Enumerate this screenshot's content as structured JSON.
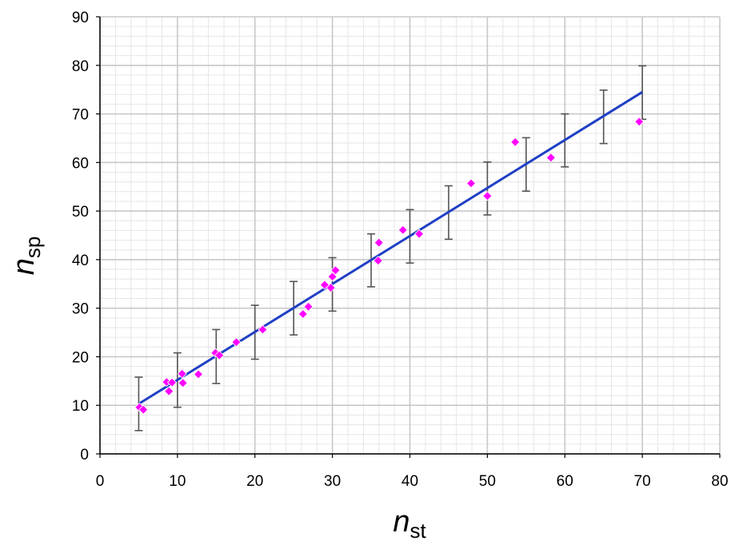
{
  "chart_data": {
    "type": "scatter",
    "title": "",
    "xlabel": {
      "main": "n",
      "sub": "st"
    },
    "ylabel": {
      "main": "n",
      "sub": "sp"
    },
    "xlim": [
      0,
      80
    ],
    "ylim": [
      0,
      90
    ],
    "x_major_step": 10,
    "y_major_step": 10,
    "x_minor_step": 2,
    "y_minor_step": 2,
    "x_ticks": [
      "0",
      "10",
      "20",
      "30",
      "40",
      "50",
      "60",
      "70",
      "80"
    ],
    "y_ticks": [
      "0",
      "10",
      "20",
      "30",
      "40",
      "50",
      "60",
      "70",
      "80",
      "90"
    ],
    "grid": true,
    "legend": "none",
    "points": [
      [
        5.1,
        9.6
      ],
      [
        5.6,
        9.1
      ],
      [
        8.6,
        14.8
      ],
      [
        8.9,
        12.9
      ],
      [
        9.3,
        14.7
      ],
      [
        10.6,
        16.5
      ],
      [
        10.7,
        14.6
      ],
      [
        12.7,
        16.4
      ],
      [
        14.9,
        20.8
      ],
      [
        15.4,
        20.3
      ],
      [
        17.6,
        23.0
      ],
      [
        21.0,
        25.6
      ],
      [
        26.2,
        28.8
      ],
      [
        26.9,
        30.3
      ],
      [
        29.0,
        34.8
      ],
      [
        29.8,
        34.2
      ],
      [
        30.0,
        36.5
      ],
      [
        30.4,
        37.8
      ],
      [
        36.0,
        43.5
      ],
      [
        35.9,
        39.8
      ],
      [
        39.1,
        46.1
      ],
      [
        41.2,
        45.3
      ],
      [
        47.9,
        55.7
      ],
      [
        50.0,
        53.1
      ],
      [
        53.6,
        64.2
      ],
      [
        58.2,
        61.0
      ],
      [
        69.6,
        68.4
      ]
    ],
    "fit_line": {
      "x": [
        5,
        70
      ],
      "y": [
        10.3,
        74.5
      ]
    },
    "error_bars": [
      {
        "x": 5,
        "y_low": 4.8,
        "y_high": 15.8
      },
      {
        "x": 10,
        "y_low": 9.6,
        "y_high": 20.8
      },
      {
        "x": 15,
        "y_low": 14.5,
        "y_high": 25.6
      },
      {
        "x": 20,
        "y_low": 19.5,
        "y_high": 30.6
      },
      {
        "x": 25,
        "y_low": 24.5,
        "y_high": 35.5
      },
      {
        "x": 30,
        "y_low": 29.4,
        "y_high": 40.4
      },
      {
        "x": 35,
        "y_low": 34.4,
        "y_high": 45.3
      },
      {
        "x": 40,
        "y_low": 39.3,
        "y_high": 50.3
      },
      {
        "x": 45,
        "y_low": 44.2,
        "y_high": 55.2
      },
      {
        "x": 50,
        "y_low": 49.2,
        "y_high": 60.1
      },
      {
        "x": 55,
        "y_low": 54.1,
        "y_high": 65.1
      },
      {
        "x": 60,
        "y_low": 59.1,
        "y_high": 70.0
      },
      {
        "x": 65,
        "y_low": 63.9,
        "y_high": 74.9
      },
      {
        "x": 70,
        "y_low": 68.9,
        "y_high": 79.9
      }
    ],
    "colors": {
      "points": "#ff00ff",
      "fit_line": "#1f3fc4",
      "error_bars": "#555555",
      "major_grid": "#c8c8c8",
      "minor_grid": "#e6e6e6",
      "axis": "#000000"
    }
  }
}
